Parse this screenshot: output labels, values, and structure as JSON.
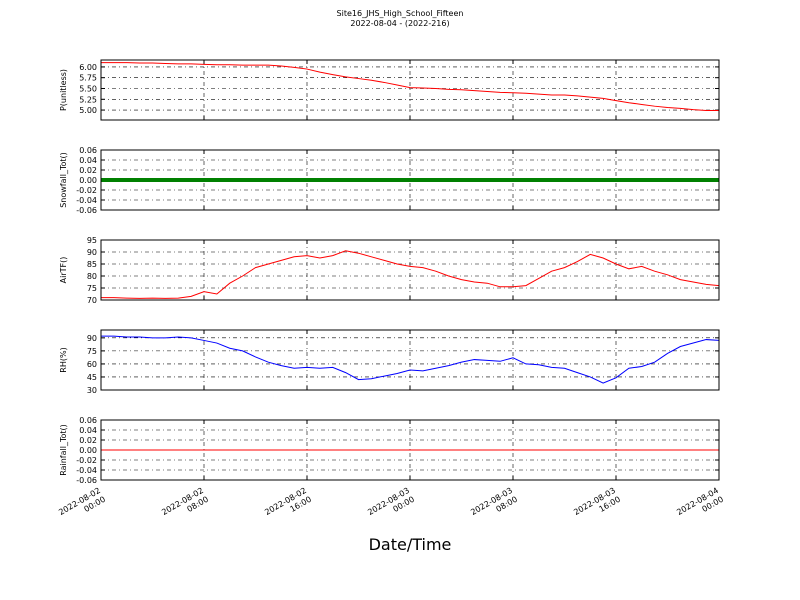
{
  "chart_data": [
    {
      "type": "line",
      "title": "Site16_JHS_High_School_Fifteen",
      "subtitle": "2022-08-04 - (2022-216)",
      "ylabel": "P(unitless)",
      "xlim": [
        "2022-08-02 00:00",
        "2022-08-04 00:00"
      ],
      "ylim": [
        4.77,
        6.16
      ],
      "yticks": [
        {
          "value": 5,
          "label": "5.00"
        },
        {
          "value": 5.25,
          "label": "5.25"
        },
        {
          "value": 5.5,
          "label": "5.50"
        },
        {
          "value": 5.75,
          "label": "5.75"
        },
        {
          "value": 6,
          "label": "6.00"
        }
      ],
      "grid": true,
      "x": [
        "2022-08-02 00:00",
        "2022-08-02 01:00",
        "2022-08-02 02:00",
        "2022-08-02 03:00",
        "2022-08-02 04:00",
        "2022-08-02 05:00",
        "2022-08-02 06:00",
        "2022-08-02 07:00",
        "2022-08-02 08:00",
        "2022-08-02 09:00",
        "2022-08-02 10:00",
        "2022-08-02 11:00",
        "2022-08-02 12:00",
        "2022-08-02 13:00",
        "2022-08-02 14:00",
        "2022-08-02 15:00",
        "2022-08-02 16:00",
        "2022-08-02 17:00",
        "2022-08-02 18:00",
        "2022-08-02 19:00",
        "2022-08-02 20:00",
        "2022-08-02 21:00",
        "2022-08-02 22:00",
        "2022-08-02 23:00",
        "2022-08-03 00:00",
        "2022-08-03 01:00",
        "2022-08-03 02:00",
        "2022-08-03 03:00",
        "2022-08-03 04:00",
        "2022-08-03 05:00",
        "2022-08-03 06:00",
        "2022-08-03 07:00",
        "2022-08-03 08:00",
        "2022-08-03 09:00",
        "2022-08-03 10:00",
        "2022-08-03 11:00",
        "2022-08-03 12:00",
        "2022-08-03 13:00",
        "2022-08-03 14:00",
        "2022-08-03 15:00",
        "2022-08-03 16:00",
        "2022-08-03 17:00",
        "2022-08-03 18:00",
        "2022-08-03 19:00",
        "2022-08-03 20:00",
        "2022-08-03 21:00",
        "2022-08-03 22:00",
        "2022-08-03 23:00",
        "2022-08-04 00:00"
      ],
      "series": [
        {
          "color": "#ff0000",
          "values": [
            6.1,
            6.1,
            6.1,
            6.09,
            6.09,
            6.08,
            6.07,
            6.07,
            6.06,
            6.05,
            6.05,
            6.04,
            6.04,
            6.04,
            6.02,
            5.99,
            5.95,
            5.88,
            5.82,
            5.77,
            5.73,
            5.69,
            5.64,
            5.58,
            5.52,
            5.51,
            5.5,
            5.48,
            5.47,
            5.45,
            5.43,
            5.41,
            5.4,
            5.39,
            5.37,
            5.35,
            5.35,
            5.33,
            5.3,
            5.27,
            5.22,
            5.17,
            5.13,
            5.09,
            5.06,
            5.04,
            5.01,
            4.99,
            4.99
          ]
        }
      ]
    },
    {
      "type": "line",
      "ylabel": "Snowfall_Tot()",
      "xlim": [
        "2022-08-02 00:00",
        "2022-08-04 00:00"
      ],
      "ylim": [
        -0.06,
        0.06
      ],
      "yticks": [
        {
          "value": -0.06,
          "label": "-0.06"
        },
        {
          "value": -0.04,
          "label": "-0.04"
        },
        {
          "value": -0.02,
          "label": "-0.02"
        },
        {
          "value": 0,
          "label": "0.00"
        },
        {
          "value": 0.02,
          "label": "0.02"
        },
        {
          "value": 0.04,
          "label": "0.04"
        },
        {
          "value": 0.06,
          "label": "0.06"
        }
      ],
      "grid": true,
      "linewidth": 4,
      "x": [
        "2022-08-02 00:00",
        "2022-08-02 01:00",
        "2022-08-02 02:00",
        "2022-08-02 03:00",
        "2022-08-02 04:00",
        "2022-08-02 05:00",
        "2022-08-02 06:00",
        "2022-08-02 07:00",
        "2022-08-02 08:00",
        "2022-08-02 09:00",
        "2022-08-02 10:00",
        "2022-08-02 11:00",
        "2022-08-02 12:00",
        "2022-08-02 13:00",
        "2022-08-02 14:00",
        "2022-08-02 15:00",
        "2022-08-02 16:00",
        "2022-08-02 17:00",
        "2022-08-02 18:00",
        "2022-08-02 19:00",
        "2022-08-02 20:00",
        "2022-08-02 21:00",
        "2022-08-02 22:00",
        "2022-08-02 23:00",
        "2022-08-03 00:00",
        "2022-08-03 01:00",
        "2022-08-03 02:00",
        "2022-08-03 03:00",
        "2022-08-03 04:00",
        "2022-08-03 05:00",
        "2022-08-03 06:00",
        "2022-08-03 07:00",
        "2022-08-03 08:00",
        "2022-08-03 09:00",
        "2022-08-03 10:00",
        "2022-08-03 11:00",
        "2022-08-03 12:00",
        "2022-08-03 13:00",
        "2022-08-03 14:00",
        "2022-08-03 15:00",
        "2022-08-03 16:00",
        "2022-08-03 17:00",
        "2022-08-03 18:00",
        "2022-08-03 19:00",
        "2022-08-03 20:00",
        "2022-08-03 21:00",
        "2022-08-03 22:00",
        "2022-08-03 23:00",
        "2022-08-04 00:00"
      ],
      "series": [
        {
          "color": "#008000",
          "values": [
            0,
            0,
            0,
            0,
            0,
            0,
            0,
            0,
            0,
            0,
            0,
            0,
            0,
            0,
            0,
            0,
            0,
            0,
            0,
            0,
            0,
            0,
            0,
            0,
            0,
            0,
            0,
            0,
            0,
            0,
            0,
            0,
            0,
            0,
            0,
            0,
            0,
            0,
            0,
            0,
            0,
            0,
            0,
            0,
            0,
            0,
            0,
            0,
            0
          ]
        }
      ]
    },
    {
      "type": "line",
      "ylabel": "AirTF()",
      "xlim": [
        "2022-08-02 00:00",
        "2022-08-04 00:00"
      ],
      "ylim": [
        70,
        95
      ],
      "yticks": [
        70,
        75,
        80,
        85,
        90,
        95
      ],
      "grid": true,
      "x": [
        "2022-08-02 00:00",
        "2022-08-02 01:00",
        "2022-08-02 02:00",
        "2022-08-02 03:00",
        "2022-08-02 04:00",
        "2022-08-02 05:00",
        "2022-08-02 06:00",
        "2022-08-02 07:00",
        "2022-08-02 08:00",
        "2022-08-02 09:00",
        "2022-08-02 10:00",
        "2022-08-02 11:00",
        "2022-08-02 12:00",
        "2022-08-02 13:00",
        "2022-08-02 14:00",
        "2022-08-02 15:00",
        "2022-08-02 16:00",
        "2022-08-02 17:00",
        "2022-08-02 18:00",
        "2022-08-02 19:00",
        "2022-08-02 20:00",
        "2022-08-02 21:00",
        "2022-08-02 22:00",
        "2022-08-02 23:00",
        "2022-08-03 00:00",
        "2022-08-03 01:00",
        "2022-08-03 02:00",
        "2022-08-03 03:00",
        "2022-08-03 04:00",
        "2022-08-03 05:00",
        "2022-08-03 06:00",
        "2022-08-03 07:00",
        "2022-08-03 08:00",
        "2022-08-03 09:00",
        "2022-08-03 10:00",
        "2022-08-03 11:00",
        "2022-08-03 12:00",
        "2022-08-03 13:00",
        "2022-08-03 14:00",
        "2022-08-03 15:00",
        "2022-08-03 16:00",
        "2022-08-03 17:00",
        "2022-08-03 18:00",
        "2022-08-03 19:00",
        "2022-08-03 20:00",
        "2022-08-03 21:00",
        "2022-08-03 22:00",
        "2022-08-03 23:00",
        "2022-08-04 00:00"
      ],
      "series": [
        {
          "color": "#ff0000",
          "values": [
            71,
            71,
            70.8,
            70.7,
            70.8,
            70.7,
            70.8,
            71.5,
            73.5,
            72.5,
            77,
            80,
            83.5,
            85,
            86.5,
            88,
            88.5,
            87.5,
            88.5,
            90.5,
            89.5,
            88,
            86.5,
            85,
            84,
            83.5,
            82,
            80,
            78.5,
            77.5,
            77,
            75.5,
            75.5,
            76,
            79,
            82,
            83.5,
            86,
            89,
            87.5,
            85,
            83,
            84,
            82,
            80.5,
            78.5,
            77.5,
            76.5,
            76
          ]
        }
      ]
    },
    {
      "type": "line",
      "ylabel": "RH(%)",
      "xlim": [
        "2022-08-02 00:00",
        "2022-08-04 00:00"
      ],
      "ylim": [
        30,
        99
      ],
      "yticks": [
        30,
        45,
        60,
        75,
        90
      ],
      "grid": true,
      "x": [
        "2022-08-02 00:00",
        "2022-08-02 01:00",
        "2022-08-02 02:00",
        "2022-08-02 03:00",
        "2022-08-02 04:00",
        "2022-08-02 05:00",
        "2022-08-02 06:00",
        "2022-08-02 07:00",
        "2022-08-02 08:00",
        "2022-08-02 09:00",
        "2022-08-02 10:00",
        "2022-08-02 11:00",
        "2022-08-02 12:00",
        "2022-08-02 13:00",
        "2022-08-02 14:00",
        "2022-08-02 15:00",
        "2022-08-02 16:00",
        "2022-08-02 17:00",
        "2022-08-02 18:00",
        "2022-08-02 19:00",
        "2022-08-02 20:00",
        "2022-08-02 21:00",
        "2022-08-02 22:00",
        "2022-08-02 23:00",
        "2022-08-03 00:00",
        "2022-08-03 01:00",
        "2022-08-03 02:00",
        "2022-08-03 03:00",
        "2022-08-03 04:00",
        "2022-08-03 05:00",
        "2022-08-03 06:00",
        "2022-08-03 07:00",
        "2022-08-03 08:00",
        "2022-08-03 09:00",
        "2022-08-03 10:00",
        "2022-08-03 11:00",
        "2022-08-03 12:00",
        "2022-08-03 13:00",
        "2022-08-03 14:00",
        "2022-08-03 15:00",
        "2022-08-03 16:00",
        "2022-08-03 17:00",
        "2022-08-03 18:00",
        "2022-08-03 19:00",
        "2022-08-03 20:00",
        "2022-08-03 21:00",
        "2022-08-03 22:00",
        "2022-08-03 23:00",
        "2022-08-04 00:00"
      ],
      "series": [
        {
          "color": "#0000ff",
          "values": [
            92,
            92,
            91,
            91,
            90,
            90,
            91,
            90,
            87,
            84,
            78,
            75,
            68,
            62,
            58,
            55,
            56,
            55,
            56,
            50,
            42,
            43,
            46,
            49,
            53,
            52,
            55,
            58,
            62,
            65,
            64,
            63,
            67,
            60,
            59,
            56,
            55,
            50,
            45,
            38,
            44,
            55,
            57,
            62,
            72,
            80,
            84,
            88,
            87
          ]
        }
      ]
    },
    {
      "type": "line",
      "ylabel": "Rainfall_Tot()",
      "xlabel": "Date/Time",
      "xlim": [
        "2022-08-02 00:00",
        "2022-08-04 00:00"
      ],
      "ylim": [
        -0.06,
        0.06
      ],
      "yticks": [
        {
          "value": -0.06,
          "label": "-0.06"
        },
        {
          "value": -0.04,
          "label": "-0.04"
        },
        {
          "value": -0.02,
          "label": "-0.02"
        },
        {
          "value": 0,
          "label": "0.00"
        },
        {
          "value": 0.02,
          "label": "0.02"
        },
        {
          "value": 0.04,
          "label": "0.04"
        },
        {
          "value": 0.06,
          "label": "0.06"
        }
      ],
      "xticks": [
        "2022-08-02 00:00",
        "2022-08-02 08:00",
        "2022-08-02 16:00",
        "2022-08-03 00:00",
        "2022-08-03 08:00",
        "2022-08-03 16:00",
        "2022-08-04 00:00"
      ],
      "grid": true,
      "x": [
        "2022-08-02 00:00",
        "2022-08-02 01:00",
        "2022-08-02 02:00",
        "2022-08-02 03:00",
        "2022-08-02 04:00",
        "2022-08-02 05:00",
        "2022-08-02 06:00",
        "2022-08-02 07:00",
        "2022-08-02 08:00",
        "2022-08-02 09:00",
        "2022-08-02 10:00",
        "2022-08-02 11:00",
        "2022-08-02 12:00",
        "2022-08-02 13:00",
        "2022-08-02 14:00",
        "2022-08-02 15:00",
        "2022-08-02 16:00",
        "2022-08-02 17:00",
        "2022-08-02 18:00",
        "2022-08-02 19:00",
        "2022-08-02 20:00",
        "2022-08-02 21:00",
        "2022-08-02 22:00",
        "2022-08-02 23:00",
        "2022-08-03 00:00",
        "2022-08-03 01:00",
        "2022-08-03 02:00",
        "2022-08-03 03:00",
        "2022-08-03 04:00",
        "2022-08-03 05:00",
        "2022-08-03 06:00",
        "2022-08-03 07:00",
        "2022-08-03 08:00",
        "2022-08-03 09:00",
        "2022-08-03 10:00",
        "2022-08-03 11:00",
        "2022-08-03 12:00",
        "2022-08-03 13:00",
        "2022-08-03 14:00",
        "2022-08-03 15:00",
        "2022-08-03 16:00",
        "2022-08-03 17:00",
        "2022-08-03 18:00",
        "2022-08-03 19:00",
        "2022-08-03 20:00",
        "2022-08-03 21:00",
        "2022-08-03 22:00",
        "2022-08-03 23:00",
        "2022-08-04 00:00"
      ],
      "series": [
        {
          "color": "#ff0000",
          "values": [
            0,
            0,
            0,
            0,
            0,
            0,
            0,
            0,
            0,
            0,
            0,
            0,
            0,
            0,
            0,
            0,
            0,
            0,
            0,
            0,
            0,
            0,
            0,
            0,
            0,
            0,
            0,
            0,
            0,
            0,
            0,
            0,
            0,
            0,
            0,
            0,
            0,
            0,
            0,
            0,
            0,
            0,
            0,
            0,
            0,
            0,
            0,
            0,
            0
          ]
        }
      ]
    }
  ]
}
